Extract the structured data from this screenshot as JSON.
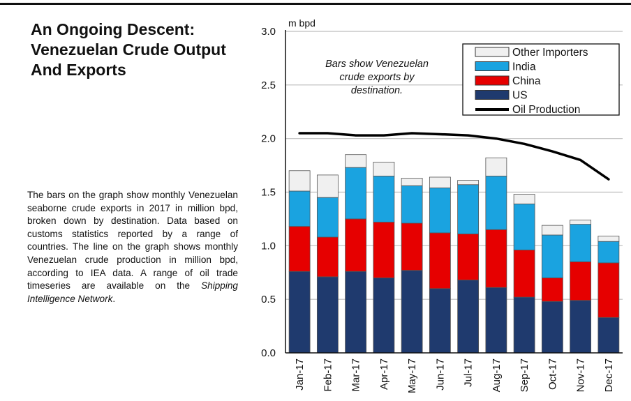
{
  "title": "An Ongoing Descent: Venezuelan Crude Output And Exports",
  "description": {
    "text": "The bars on the graph show monthly Venezuelan seaborne crude exports in 2017 in million bpd, broken down by destination. Data based on customs statistics reported by a range of countries. The line on the graph shows monthly Venezuelan crude production in million bpd, according to IEA data. A range of oil trade timeseries are available on the",
    "source_name": "Shipping Intelligence Network",
    "end": "."
  },
  "chart_data": {
    "type": "bar",
    "stacked": true,
    "unit_label": "m bpd",
    "annotation": "Bars show Venezuelan crude exports by destination.",
    "annotation_lines": [
      "Bars show Venezuelan",
      "crude exports by",
      "destination."
    ],
    "categories": [
      "Jan-17",
      "Feb-17",
      "Mar-17",
      "Apr-17",
      "May-17",
      "Jun-17",
      "Jul-17",
      "Aug-17",
      "Sep-17",
      "Oct-17",
      "Nov-17",
      "Dec-17"
    ],
    "ylim": [
      0,
      3.0
    ],
    "yticks": [
      "0.0",
      "0.5",
      "1.0",
      "1.5",
      "2.0",
      "2.5",
      "3.0"
    ],
    "grid": true,
    "legend_position": "top-right",
    "series": [
      {
        "name": "US",
        "color": "#1f3a6e",
        "values": [
          0.76,
          0.71,
          0.76,
          0.7,
          0.77,
          0.6,
          0.68,
          0.61,
          0.52,
          0.48,
          0.49,
          0.33
        ]
      },
      {
        "name": "China",
        "color": "#e60000",
        "values": [
          0.42,
          0.37,
          0.49,
          0.52,
          0.44,
          0.52,
          0.43,
          0.54,
          0.44,
          0.22,
          0.36,
          0.51
        ]
      },
      {
        "name": "India",
        "color": "#1aa3e0",
        "values": [
          0.33,
          0.37,
          0.48,
          0.43,
          0.35,
          0.42,
          0.46,
          0.5,
          0.43,
          0.4,
          0.35,
          0.2
        ]
      },
      {
        "name": "Other Importers",
        "color": "#f0f0f0",
        "values": [
          0.19,
          0.21,
          0.12,
          0.13,
          0.07,
          0.1,
          0.04,
          0.17,
          0.09,
          0.09,
          0.04,
          0.05
        ]
      }
    ],
    "line_series": {
      "name": "Oil Production",
      "color": "#000000",
      "values": [
        2.05,
        2.05,
        2.03,
        2.03,
        2.05,
        2.04,
        2.03,
        2.0,
        1.95,
        1.88,
        1.8,
        1.62
      ]
    },
    "legend_order": [
      "Other Importers",
      "India",
      "China",
      "US",
      "Oil Production"
    ]
  }
}
